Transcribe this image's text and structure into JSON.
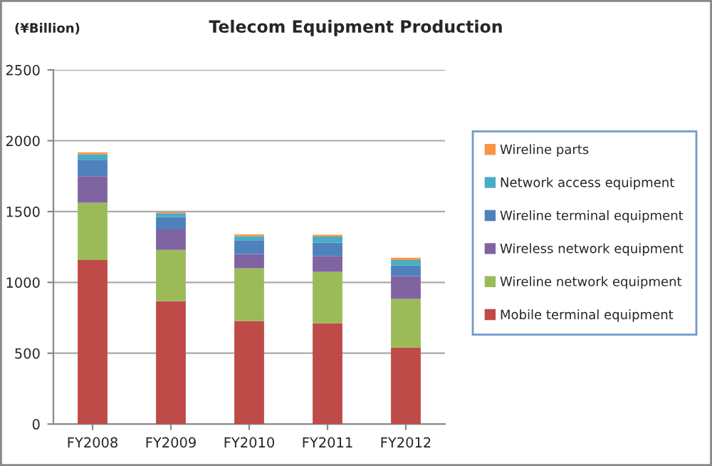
{
  "chart_data": {
    "type": "bar",
    "title": "Telecom Equipment Production",
    "ylabel": "(¥Billion)",
    "stacked": true,
    "categories": [
      "FY2008",
      "FY2009",
      "FY2010",
      "FY2011",
      "FY2012"
    ],
    "series": [
      {
        "name": "Mobile terminal equipment",
        "color": "#be4b48",
        "values": [
          1158,
          867,
          728,
          711,
          540
        ]
      },
      {
        "name": "Wireline network equipment",
        "color": "#9bbb59",
        "values": [
          404,
          362,
          372,
          363,
          343
        ]
      },
      {
        "name": "Wireless network equipment",
        "color": "#8064a2",
        "values": [
          188,
          145,
          100,
          110,
          162
        ]
      },
      {
        "name": "Wireline terminal equipment",
        "color": "#4f81bd",
        "values": [
          116,
          88,
          97,
          97,
          74
        ]
      },
      {
        "name": "Network access equipment",
        "color": "#4bacc6",
        "values": [
          39,
          26,
          29,
          42,
          39
        ]
      },
      {
        "name": "Wireline parts",
        "color": "#f79646",
        "values": [
          13,
          9,
          13,
          13,
          16
        ]
      }
    ],
    "ylim": [
      0,
      2500
    ],
    "yticks": [
      0,
      500,
      1000,
      1500,
      2000,
      2500
    ],
    "grid": "y",
    "legend": "right"
  }
}
